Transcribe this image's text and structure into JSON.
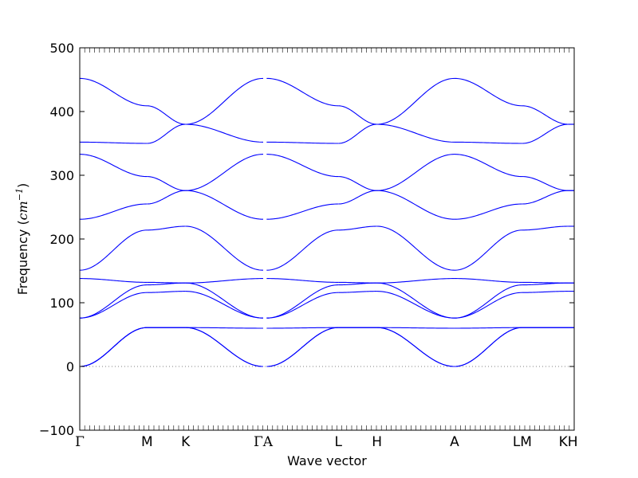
{
  "chart_data": {
    "type": "line",
    "title": "",
    "xlabel": "Wave vector",
    "ylabel": "Frequency",
    "ylabel_unit": "cm",
    "ylabel_unit_exp": "−1",
    "ylim": [
      -100,
      500
    ],
    "yticks": [
      -100,
      0,
      100,
      200,
      300,
      400,
      500
    ],
    "zero_line": true,
    "grid": false,
    "line_color": "#0000ff",
    "kpoints": [
      {
        "label": "Γ",
        "x": 0
      },
      {
        "label": "M",
        "x": 0.136
      },
      {
        "label": "K",
        "x": 0.214
      },
      {
        "label": "ΓA",
        "x": 0.371
      },
      {
        "label": "L",
        "x": 0.523
      },
      {
        "label": "H",
        "x": 0.601
      },
      {
        "label": "A",
        "x": 0.758
      },
      {
        "label": "LM",
        "x": 0.895
      },
      {
        "label": "KH",
        "x": 0.988
      }
    ],
    "segments": [
      {
        "path": "Γ-M",
        "x": [
          0.0,
          0.136
        ],
        "bands": [
          [
            0,
            61
          ],
          [
            0,
            61
          ],
          [
            0,
            61
          ],
          [
            76,
            116
          ],
          [
            76,
            128
          ],
          [
            138,
            132
          ],
          [
            151,
            214
          ],
          [
            231,
            255
          ],
          [
            333,
            298
          ],
          [
            352,
            350
          ],
          [
            452,
            409
          ]
        ]
      },
      {
        "path": "M-K",
        "x": [
          0.136,
          0.214
        ],
        "bands": [
          [
            61,
            61
          ],
          [
            61,
            61
          ],
          [
            61,
            61
          ],
          [
            116,
            118
          ],
          [
            128,
            131
          ],
          [
            132,
            131
          ],
          [
            214,
            220
          ],
          [
            255,
            276
          ],
          [
            298,
            276
          ],
          [
            350,
            380
          ],
          [
            409,
            380
          ]
        ]
      },
      {
        "path": "K-Γ",
        "x": [
          0.214,
          0.371
        ],
        "bands": [
          [
            61,
            0
          ],
          [
            61,
            0
          ],
          [
            61,
            60
          ],
          [
            118,
            76
          ],
          [
            131,
            76
          ],
          [
            131,
            138
          ],
          [
            220,
            151
          ],
          [
            276,
            333
          ],
          [
            276,
            231
          ],
          [
            380,
            452
          ],
          [
            380,
            352
          ]
        ]
      },
      {
        "path": "A-L",
        "x": [
          0.378,
          0.523
        ],
        "bands": [
          [
            0,
            61
          ],
          [
            0,
            61
          ],
          [
            60,
            61
          ],
          [
            76,
            116
          ],
          [
            76,
            128
          ],
          [
            138,
            132
          ],
          [
            151,
            214
          ],
          [
            231,
            255
          ],
          [
            333,
            298
          ],
          [
            352,
            350
          ],
          [
            452,
            409
          ]
        ]
      },
      {
        "path": "L-H",
        "x": [
          0.523,
          0.601
        ],
        "bands": [
          [
            61,
            61
          ],
          [
            61,
            61
          ],
          [
            61,
            61
          ],
          [
            116,
            118
          ],
          [
            128,
            131
          ],
          [
            132,
            131
          ],
          [
            214,
            220
          ],
          [
            255,
            276
          ],
          [
            298,
            276
          ],
          [
            350,
            380
          ],
          [
            409,
            380
          ]
        ]
      },
      {
        "path": "H-A",
        "x": [
          0.601,
          0.758
        ],
        "bands": [
          [
            61,
            0
          ],
          [
            61,
            0
          ],
          [
            61,
            60
          ],
          [
            118,
            76
          ],
          [
            131,
            76
          ],
          [
            131,
            138
          ],
          [
            220,
            151
          ],
          [
            276,
            333
          ],
          [
            276,
            231
          ],
          [
            380,
            452
          ],
          [
            380,
            352
          ]
        ]
      },
      {
        "path": "A-L",
        "x": [
          0.758,
          0.895
        ],
        "bands": [
          [
            0,
            61
          ],
          [
            0,
            61
          ],
          [
            60,
            61
          ],
          [
            76,
            116
          ],
          [
            76,
            128
          ],
          [
            138,
            132
          ],
          [
            151,
            214
          ],
          [
            231,
            255
          ],
          [
            333,
            298
          ],
          [
            352,
            350
          ],
          [
            452,
            409
          ]
        ]
      },
      {
        "path": "M-K",
        "x": [
          0.895,
          0.988
        ],
        "bands": [
          [
            61,
            61
          ],
          [
            61,
            61
          ],
          [
            61,
            61
          ],
          [
            116,
            118
          ],
          [
            128,
            131
          ],
          [
            132,
            131
          ],
          [
            214,
            220
          ],
          [
            255,
            276
          ],
          [
            298,
            276
          ],
          [
            350,
            380
          ],
          [
            409,
            380
          ]
        ]
      },
      {
        "path": "K-H",
        "x": [
          0.988,
          1.0
        ],
        "bands": [
          [
            61,
            61
          ],
          [
            61,
            61
          ],
          [
            61,
            61
          ],
          [
            118,
            118
          ],
          [
            131,
            131
          ],
          [
            131,
            131
          ],
          [
            220,
            220
          ],
          [
            276,
            276
          ],
          [
            276,
            276
          ],
          [
            380,
            380
          ],
          [
            380,
            380
          ]
        ]
      }
    ]
  }
}
